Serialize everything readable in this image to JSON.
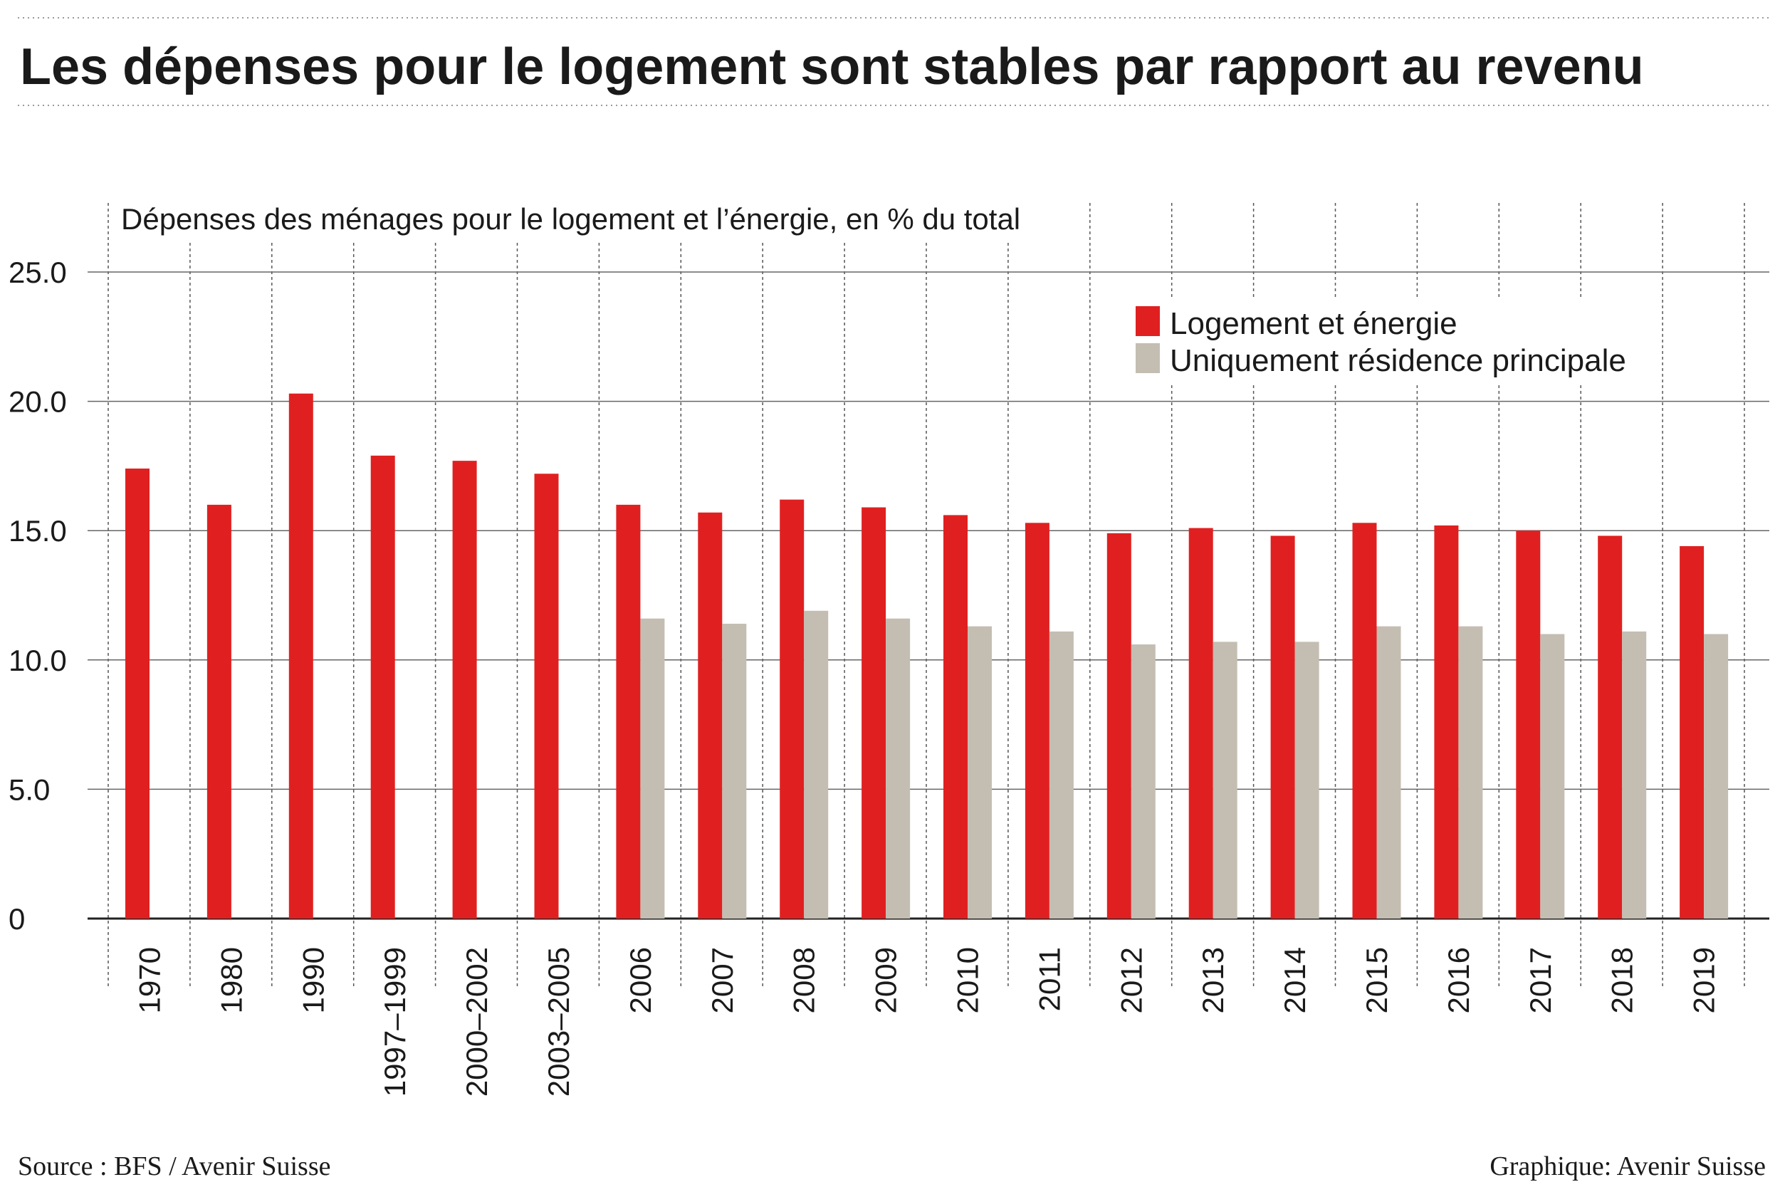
{
  "title": "Les dépenses pour le logement sont stables par rapport au revenu",
  "source": "Source : BFS / Avenir Suisse",
  "credit": "Graphique: Avenir Suisse",
  "colors": {
    "primary": "#e02020",
    "secondary": "#c4bdb2"
  },
  "chart_data": {
    "type": "bar",
    "subtitle": "Dépenses des ménages pour le logement et l’énergie, en % du total",
    "categories": [
      "1970",
      "1980",
      "1990",
      "1997–1999",
      "2000–2002",
      "2003–2005",
      "2006",
      "2007",
      "2008",
      "2009",
      "2010",
      "2011",
      "2012",
      "2013",
      "2014",
      "2015",
      "2016",
      "2017",
      "2018",
      "2019"
    ],
    "series": [
      {
        "name": "Logement et énergie",
        "values": [
          17.4,
          16.0,
          20.3,
          17.9,
          17.7,
          17.2,
          16.0,
          15.7,
          16.2,
          15.9,
          15.6,
          15.3,
          14.9,
          15.1,
          14.8,
          15.3,
          15.2,
          15.0,
          14.8,
          14.4
        ]
      },
      {
        "name": "Uniquement résidence principale",
        "values": [
          null,
          null,
          null,
          null,
          null,
          null,
          11.6,
          11.4,
          11.9,
          11.6,
          11.3,
          11.1,
          10.6,
          10.7,
          10.7,
          11.3,
          11.3,
          11.0,
          11.1,
          11.0
        ]
      }
    ],
    "yticks": [
      "0",
      "5.0",
      "10.0",
      "15.0",
      "20.0",
      "25.0"
    ],
    "ylim": [
      0,
      25
    ],
    "legend_position": "top-right"
  }
}
